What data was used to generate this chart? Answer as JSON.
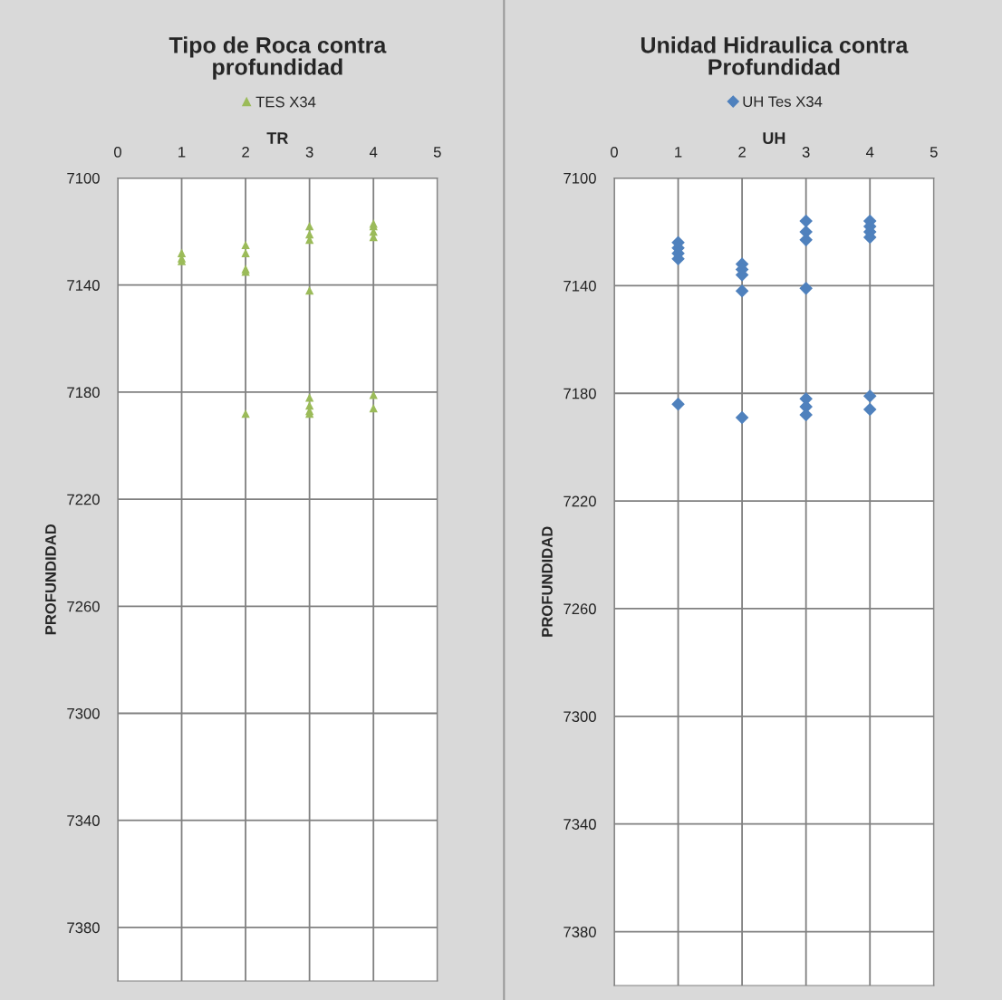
{
  "chart_data": [
    {
      "type": "scatter",
      "title": "Tipo de Roca contra\nprofundidad",
      "xlabel": "TR",
      "ylabel": "PROFUNDIDAD",
      "xlim": [
        0,
        5
      ],
      "xticks": [
        0,
        1,
        2,
        3,
        4,
        5
      ],
      "ylim": [
        7400,
        7100
      ],
      "yticks": [
        7100,
        7140,
        7180,
        7220,
        7260,
        7300,
        7340,
        7380
      ],
      "grid": true,
      "legend": "top",
      "marker": "triangle",
      "series": [
        {
          "name": "TES X34",
          "color": "#9bbb59",
          "x": [
            1,
            1,
            1,
            2,
            2,
            2,
            2,
            3,
            3,
            3,
            3,
            4,
            4,
            4,
            4,
            2,
            3,
            3,
            3,
            3,
            4,
            4
          ],
          "values": [
            7128,
            7130,
            7131,
            7125,
            7128,
            7134,
            7135,
            7118,
            7121,
            7123,
            7142,
            7117,
            7118,
            7120,
            7122,
            7188,
            7182,
            7185,
            7187,
            7188,
            7181,
            7186
          ]
        }
      ]
    },
    {
      "type": "scatter",
      "title": "Unidad Hidraulica contra\nProfundidad",
      "xlabel": "UH",
      "ylabel": "PROFUNDIDAD",
      "xlim": [
        0,
        5
      ],
      "xticks": [
        0,
        1,
        2,
        3,
        4,
        5
      ],
      "ylim": [
        7400,
        7100
      ],
      "yticks": [
        7100,
        7140,
        7180,
        7220,
        7260,
        7300,
        7340,
        7380
      ],
      "grid": true,
      "legend": "top",
      "marker": "diamond",
      "series": [
        {
          "name": "UH Tes X34",
          "color": "#4f81bd",
          "x": [
            1,
            1,
            1,
            1,
            1,
            2,
            2,
            2,
            2,
            2,
            3,
            3,
            3,
            3,
            3,
            3,
            3,
            4,
            4,
            4,
            4,
            4,
            4
          ],
          "values": [
            7124,
            7126,
            7128,
            7130,
            7184,
            7132,
            7134,
            7136,
            7142,
            7189,
            7116,
            7120,
            7123,
            7141,
            7182,
            7185,
            7188,
            7116,
            7118,
            7120,
            7122,
            7181,
            7186
          ]
        }
      ]
    }
  ]
}
